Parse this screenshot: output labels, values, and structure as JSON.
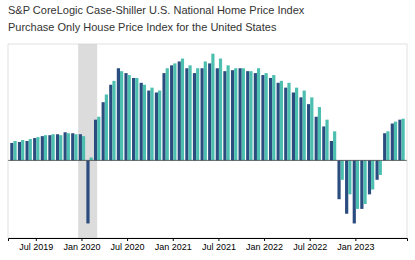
{
  "chart_data": {
    "type": "bar",
    "title": "S&P CoreLogic Case-Shiller U.S. National Home Price Index",
    "subtitle": "Purchase Only House Price Index for the United States",
    "categories": [
      null,
      null,
      null,
      "Jul 2019",
      null,
      null,
      null,
      null,
      null,
      "Jan 2020",
      null,
      null,
      null,
      null,
      null,
      "Jul 2020",
      null,
      null,
      null,
      null,
      null,
      "Jan 2021",
      null,
      null,
      null,
      null,
      null,
      "Jul 2021",
      null,
      null,
      null,
      null,
      null,
      "Jan 2022",
      null,
      null,
      null,
      null,
      null,
      "Jul 2022",
      null,
      null,
      null,
      null,
      null,
      "Jan 2023",
      null,
      null,
      null,
      null,
      null,
      null
    ],
    "series": [
      {
        "color": "#2B4C7E",
        "values": [
          1.8,
          1.9,
          2.0,
          2.3,
          2.5,
          2.6,
          2.7,
          2.9,
          2.8,
          2.7,
          -6.5,
          4.2,
          6.0,
          7.8,
          9.5,
          9.0,
          8.5,
          8.0,
          7.2,
          7.0,
          9.0,
          9.8,
          10.2,
          9.5,
          9.0,
          9.5,
          10.0,
          9.5,
          9.2,
          9.3,
          9.5,
          9.2,
          9.0,
          8.8,
          8.5,
          8.0,
          7.5,
          7.0,
          6.5,
          5.8,
          4.5,
          3.5,
          2.0,
          -4.0,
          -5.5,
          -6.5,
          -5.0,
          -3.5,
          -2.0,
          2.8,
          3.8,
          4.2
        ]
      },
      {
        "color": "#4DBFB0",
        "values": [
          2.0,
          2.1,
          2.2,
          2.4,
          2.6,
          2.7,
          2.6,
          2.8,
          2.7,
          2.5,
          0.3,
          4.5,
          6.8,
          8.2,
          9.2,
          8.8,
          8.5,
          7.8,
          7.5,
          7.2,
          9.5,
          10.0,
          10.5,
          9.8,
          9.5,
          10.2,
          11.0,
          10.5,
          9.8,
          9.5,
          9.5,
          9.2,
          9.5,
          9.0,
          8.8,
          8.2,
          8.0,
          7.5,
          7.2,
          6.5,
          5.5,
          4.2,
          3.0,
          -2.0,
          -3.5,
          -5.0,
          -4.5,
          -3.0,
          -1.5,
          3.0,
          4.0,
          4.3
        ]
      }
    ],
    "shaded_band": {
      "start": 8.5,
      "end": 11.0,
      "color": "#DCDCDC"
    },
    "ylim": [
      -8,
      12
    ],
    "tick_labels": "x",
    "grid": false
  }
}
